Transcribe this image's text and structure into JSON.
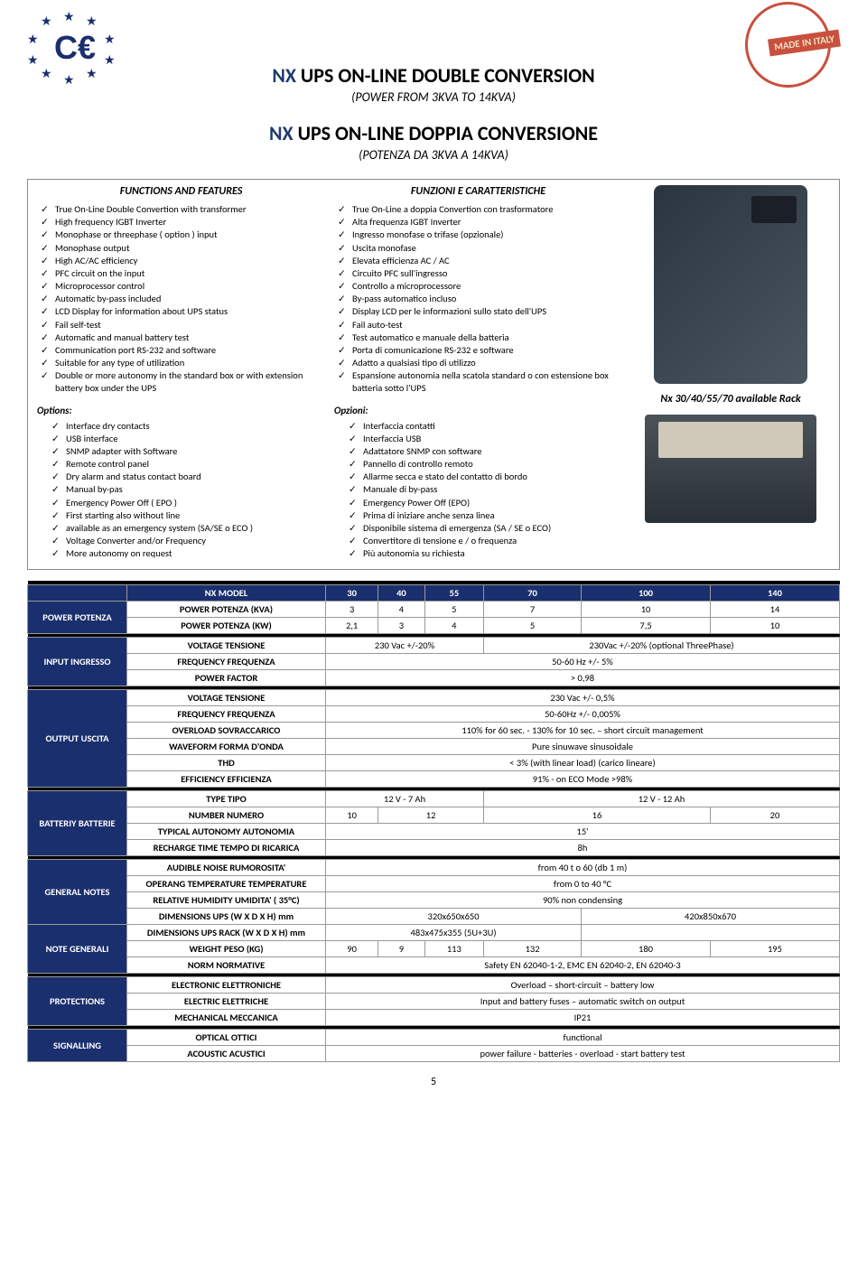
{
  "header": {
    "title_en_prefix": "NX",
    "title_en": " UPS ON-LINE DOUBLE CONVERSION",
    "subtitle_en": "(POWER FROM 3KVA TO 14KVA)",
    "title_it_prefix": "NX",
    "title_it": " UPS ON-LINE DOPPIA CONVERSIONE",
    "subtitle_it": "(POTENZA DA 3KVA A 14KVA)",
    "italy_badge": "MADE IN ITALY"
  },
  "features": {
    "head_en": "FUNCTIONS AND  FEATURES",
    "head_it": "FUNZIONI E CARATTERISTICHE",
    "list_en": [
      "True On-Line Double Convertion with transformer",
      "High frequency IGBT Inverter",
      "Monophase or threephase ( option ) input",
      "Monophase output",
      "High AC/AC efficiency",
      "PFC circuit on the input",
      "Microprocessor control",
      "Automatic by-pass included",
      "LCD Display for information about UPS status",
      "Fail self-test",
      "Automatic and manual battery test",
      "Communication port RS-232 and software",
      "Suitable for any type of utilization",
      "Double or more autonomy in the standard box or with  extension battery box under the UPS"
    ],
    "opts_head_en": "Options:",
    "opts_en": [
      "Interface dry contacts",
      "USB interface",
      "SNMP adapter with Software",
      "Remote control panel",
      "Dry alarm and status contact board",
      "Manual by-pas",
      "Emergency Power Off ( EPO )",
      "First starting also without line",
      "available as an emergency system  (SA/SE o ECO )",
      "Voltage Converter and/or Frequency",
      "More autonomy on request"
    ],
    "list_it": [
      "True On-Line a doppia Convertion con trasformatore",
      "Alta frequenza IGBT Inverter",
      "Ingresso monofase o trifase (opzionale)",
      "Uscita monofase",
      "Elevata efficienza AC / AC",
      "Circuito PFC sull'ingresso",
      "Controllo a microprocessore",
      "By-pass automatico incluso",
      "Display LCD per le informazioni sullo stato dell'UPS",
      "Fail auto-test",
      "Test automatico e manuale della batteria",
      "Porta di comunicazione RS-232 e software",
      "Adatto a qualsiasi tipo di utilizzo",
      "Espansione autonomia nella scatola standard o con estensione box batteria sotto l'UPS"
    ],
    "opts_head_it": "Opzioni:",
    "opts_it": [
      "Interfaccia contatti",
      "Interfaccia USB",
      "Adattatore SNMP con software",
      "Pannello di controllo remoto",
      "Allarme secca e stato del contatto di bordo",
      "Manuale di by-pass",
      "Emergency Power Off (EPO)",
      "Prima di iniziare anche senza linea",
      "Disponibile  sistema di emergenza (SA / SE o ECO)",
      "Convertitore di tensione e / o frequenza",
      "Più autonomia su richiesta"
    ],
    "rack_label": "Nx 30/40/55/70 available Rack"
  },
  "spec": {
    "model_label": "NX MODEL",
    "models": [
      "30",
      "40",
      "55",
      "70",
      "100",
      "140"
    ],
    "power_section": "POWER POTENZA",
    "power_kva_label": "POWER POTENZA (KVA)",
    "power_kva": [
      "3",
      "4",
      "5",
      "7",
      "10",
      "14"
    ],
    "power_kw_label": "POWER POTENZA (KW)",
    "power_kw": [
      "2,1",
      "3",
      "4",
      "5",
      "7,5",
      "10"
    ],
    "input_section": "INPUT INGRESSO",
    "voltage_label": "VOLTAGE TENSIONE",
    "input_voltage_a": "230  Vac +/-20%",
    "input_voltage_b": "230Vac  +/-20% (optional ThreePhase)",
    "freq_label": "FREQUENCY FREQUENZA",
    "input_freq": "50-60 Hz +/- 5%",
    "pf_label": "POWER FACTOR",
    "pf": "> 0,98",
    "output_section": "OUTPUT USCITA",
    "out_voltage": "230  Vac +/- 0,5%",
    "out_freq": "50-60Hz +/- 0,005%",
    "overload_label": "OVERLOAD SOVRACCARICO",
    "overload": "110% for 60 sec. - 130% for 10 sec. – short circuit management",
    "waveform_label": "WAVEFORM FORMA D'ONDA",
    "waveform": "Pure sinuwave sinusoidale",
    "thd_label": "THD",
    "thd": "< 3%  (with linear load) (carico lineare)",
    "eff_label": "EFFICIENCY EFFICIENZA",
    "eff": "91% - on ECO Mode  >98%",
    "battery_section": "BATTERIY BATTERIE",
    "type_label": "TYPE TIPO",
    "type_a": "12  V - 7 Ah",
    "type_b": "12  V - 12  Ah",
    "number_label": "NUMBER NUMERO",
    "numbers": [
      "10",
      "12",
      "16",
      "20"
    ],
    "autonomy_label": "TYPICAL AUTONOMY AUTONOMIA",
    "autonomy": "15'",
    "recharge_label": "RECHARGE TIME TEMPO DI RICARICA",
    "recharge": "8h",
    "general_section": "GENERAL NOTES",
    "note_section": "NOTE GENERALI",
    "noise_label": "AUDIBLE NOISE RUMOROSITA'",
    "noise": "from  40 t o  60 (db  1  m)",
    "temp_label": "OPERANG TEMPERATURE TEMPERATURE",
    "temp": "from  0 to 40 °C",
    "humid_label": "RELATIVE HUMIDITY  UMIDITA' ( 35°C)",
    "humid": "90% non condensing",
    "dim_label": "DIMENSIONS UPS (W X D X H) mm",
    "dim_a": "320x650x650",
    "dim_b": "420x850x670",
    "dimr_label": "DIMENSIONS UPS RACK (W X D X H) mm",
    "dimr": "483x475x355 (5U+3U)",
    "weight_label": "WEIGHT PESO (KG)",
    "weights": [
      "90",
      "9",
      "113",
      "132",
      "180",
      "195"
    ],
    "norm_label": "NORM NORMATIVE",
    "norm": "Safety  EN 62040-1-2, EMC EN 62040-2, EN 62040-3",
    "protections_section": "PROTECTIONS",
    "elec_label": "ELECTRONIC ELETTRONICHE",
    "elec": "Overload – short-circuit – battery low",
    "elect_label": "ELECTRIC ELETTRICHE",
    "elect": "Input and battery fuses  –  automatic switch on output",
    "mech_label": "MECHANICAL MECCANICA",
    "mech": "IP21",
    "signal_section": "SIGNALLING",
    "opt_label": "OPTICAL OTTICI",
    "opt": "functional",
    "ac_label": "ACOUSTIC ACUSTICI",
    "ac": "power failure  -  batteries  -  overload  -  start  battery test"
  },
  "page_number": "5",
  "colors": {
    "navy": "#1a2f6d"
  }
}
